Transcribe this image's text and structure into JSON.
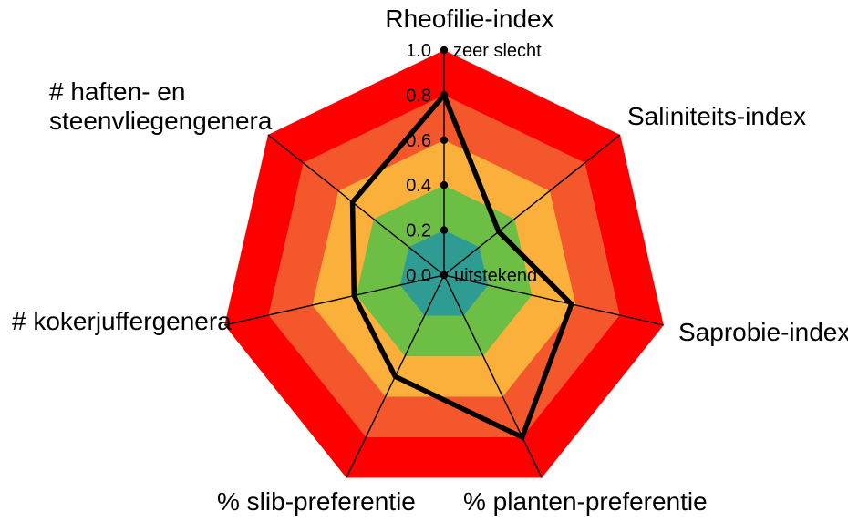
{
  "chart_data": {
    "type": "radar",
    "title": "",
    "axes_clockwise_from_top": true,
    "axes": [
      {
        "label": "Rheofilie-index",
        "value": 0.8
      },
      {
        "label": "Saliniteits-index",
        "value": 0.31
      },
      {
        "label": "Saprobie-index",
        "value": 0.58
      },
      {
        "label": "% planten-preferentie",
        "value": 0.8
      },
      {
        "label": "% slib-preferentie",
        "value": 0.5
      },
      {
        "label": "# kokerjuffergenera",
        "value": 0.41
      },
      {
        "label": "# haften- en steenvliegengenera",
        "label_line1": "# haften- en",
        "label_line2": "steenvliegengenera",
        "value": 0.52
      }
    ],
    "scale": {
      "min": 0.0,
      "max": 1.0,
      "tick_step": 0.2,
      "tick_labels": [
        "0.0",
        "0.2",
        "0.4",
        "0.6",
        "0.8",
        "1.0"
      ]
    },
    "annotations": {
      "min_label": "uitstekend",
      "max_label": "zeer slecht"
    },
    "rings": [
      {
        "range": [
          0.8,
          1.0
        ],
        "color": "#fe0000"
      },
      {
        "range": [
          0.6,
          0.8
        ],
        "color": "#f4572c"
      },
      {
        "range": [
          0.4,
          0.6
        ],
        "color": "#fbb03b"
      },
      {
        "range": [
          0.2,
          0.4
        ],
        "color": "#6cbe45"
      },
      {
        "range": [
          0.0,
          0.2
        ],
        "color": "#2e9c93"
      }
    ],
    "series_style": {
      "stroke": "#000000",
      "stroke_width": 5.5
    },
    "axis_line_color": "#000000",
    "tick_dot_color": "#000000",
    "background": "#ffffff"
  }
}
